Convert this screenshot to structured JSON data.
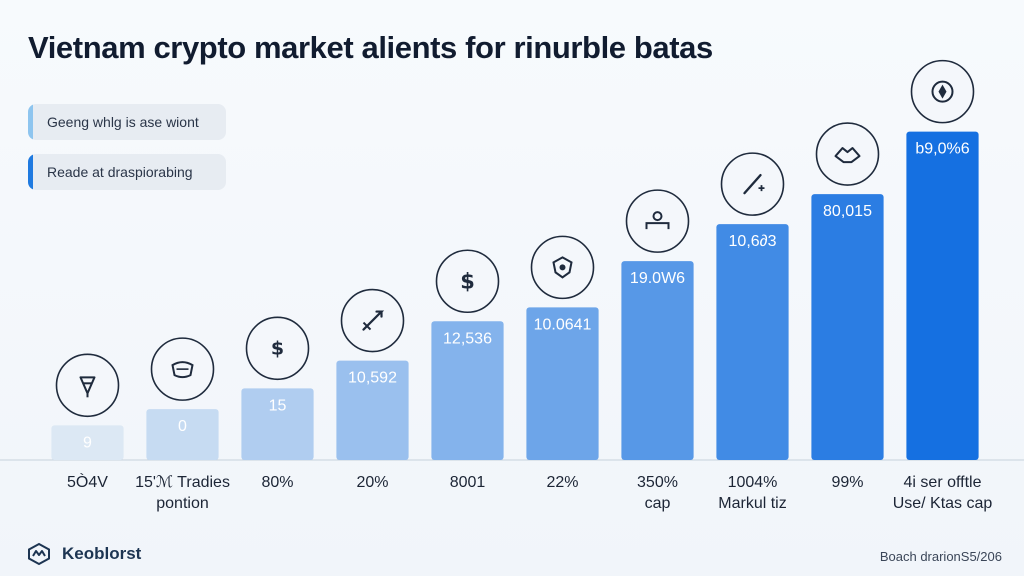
{
  "title": "Vietnam crypto market alients for rinurble batas",
  "legend": [
    {
      "label": "Geeng whlg is ase wiont",
      "color": "#8ec5ef"
    },
    {
      "label": "Reade at draspiorabing",
      "color": "#1f7ae0"
    }
  ],
  "chart_data": {
    "type": "bar",
    "title": "Vietnam crypto market alients for rinurble batas",
    "xlabel": "",
    "ylabel": "",
    "categories": [
      [
        "5Ò4V"
      ],
      [
        "15'ℳ Tradies",
        "pontion"
      ],
      [
        "80%"
      ],
      [
        "20%"
      ],
      [
        "8001"
      ],
      [
        "22%"
      ],
      [
        "350%",
        "cap"
      ],
      [
        "1004%",
        "Markul tiz"
      ],
      [
        "99%"
      ],
      [
        "4i ser offtle",
        "Use/ Ktas cap"
      ]
    ],
    "values": [
      1.5,
      2.2,
      3.1,
      4.3,
      6.0,
      6.6,
      8.6,
      10.2,
      11.5,
      14.2
    ],
    "value_labels": [
      "9",
      "0",
      "15",
      "10,592",
      "12,536",
      "10.0641",
      "19.0W6",
      "10,6∂3",
      "80,015",
      "b9,0%6"
    ],
    "icons": [
      "crypto-coin-icon",
      "mask-icon",
      "dollar-coin-icon",
      "arrow-chart-icon",
      "dollar-sign-icon",
      "shield-icon",
      "user-desk-icon",
      "pen-plus-icon",
      "handshake-icon",
      "compass-icon"
    ],
    "ylim": [
      0,
      16
    ],
    "grid": false,
    "legend_position": "top-left"
  },
  "footer": {
    "brand": "Keoblorst",
    "note": "Boach drarionS5/206"
  }
}
